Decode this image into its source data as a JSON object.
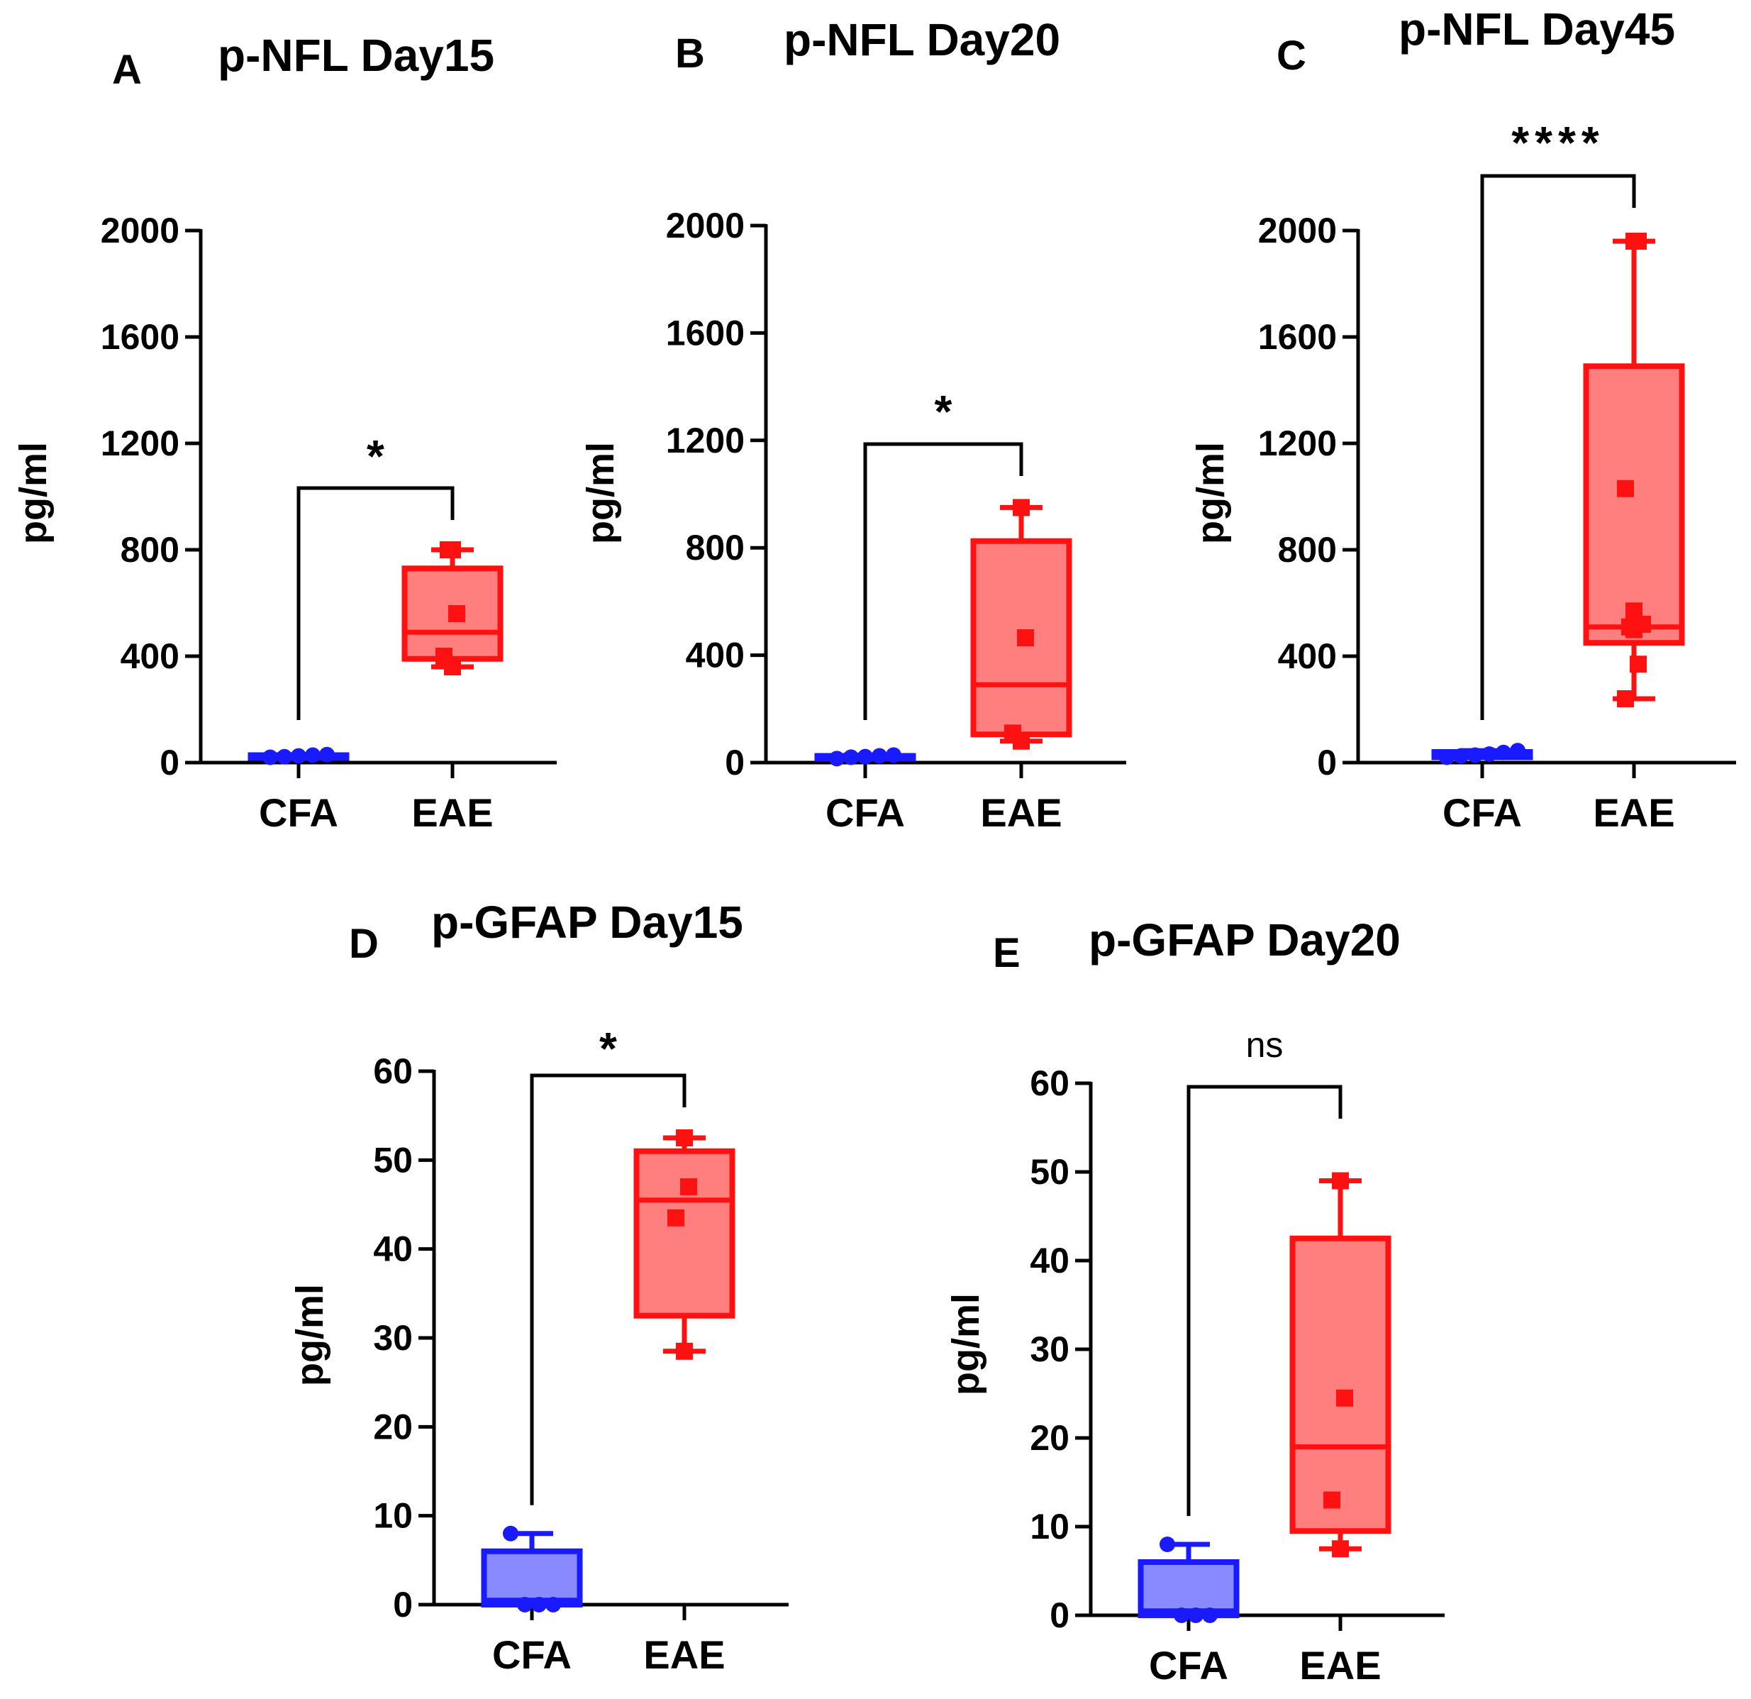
{
  "figure": {
    "colors": {
      "CFA": "#1a1aff",
      "CFA_fill": "#8a8aff",
      "EAE": "#ff1111",
      "EAE_fill": "#ff7f7f",
      "axis": "#000000"
    }
  },
  "chart_data": [
    {
      "panel": "A",
      "type": "box",
      "title": "p-NFL Day15",
      "ylabel": "pg/ml",
      "xlabel": "",
      "categories": [
        "CFA",
        "EAE"
      ],
      "ylim": [
        0,
        2000
      ],
      "yticks": [
        0,
        400,
        800,
        1200,
        1600,
        2000
      ],
      "yticklabels": [
        "0",
        "400",
        "800",
        "1200",
        "1600",
        "2000"
      ],
      "significance": "*",
      "series": [
        {
          "name": "CFA",
          "min": 20,
          "q1": 20,
          "median": 22,
          "q3": 28,
          "max": 30,
          "points": [
            20,
            22,
            25,
            28,
            30
          ]
        },
        {
          "name": "EAE",
          "min": 360,
          "q1": 390,
          "median": 490,
          "q3": 730,
          "max": 800,
          "points": [
            800,
            560,
            400,
            360,
            800
          ]
        }
      ]
    },
    {
      "panel": "B",
      "type": "box",
      "title": "p-NFL Day20",
      "ylabel": "pg/ml",
      "xlabel": "",
      "categories": [
        "CFA",
        "EAE"
      ],
      "ylim": [
        0,
        2000
      ],
      "yticks": [
        0,
        400,
        800,
        1200,
        1600,
        2000
      ],
      "yticklabels": [
        "0",
        "400",
        "800",
        "1200",
        "1600",
        "2000"
      ],
      "significance": "*",
      "series": [
        {
          "name": "CFA",
          "min": 15,
          "q1": 15,
          "median": 20,
          "q3": 25,
          "max": 28,
          "points": [
            15,
            20,
            22,
            25,
            28
          ]
        },
        {
          "name": "EAE",
          "min": 80,
          "q1": 105,
          "median": 290,
          "q3": 825,
          "max": 950,
          "points": [
            950,
            465,
            110,
            80
          ]
        }
      ]
    },
    {
      "panel": "C",
      "type": "box",
      "title": "p-NFL Day45",
      "ylabel": "pg/ml",
      "xlabel": "",
      "categories": [
        "CFA",
        "EAE"
      ],
      "ylim": [
        0,
        2000
      ],
      "yticks": [
        0,
        400,
        800,
        1200,
        1600,
        2000
      ],
      "yticklabels": [
        "0",
        "400",
        "800",
        "1200",
        "1600",
        "2000"
      ],
      "significance": "****",
      "series": [
        {
          "name": "CFA",
          "min": 20,
          "q1": 20,
          "median": 28,
          "q3": 40,
          "max": 45,
          "points": [
            20,
            25,
            28,
            32,
            38,
            45
          ]
        },
        {
          "name": "EAE",
          "min": 240,
          "q1": 450,
          "median": 510,
          "q3": 1490,
          "max": 1960,
          "points": [
            1960,
            1960,
            1030,
            570,
            510,
            520,
            500,
            370,
            240
          ]
        }
      ]
    },
    {
      "panel": "D",
      "type": "box",
      "title": "p-GFAP Day15",
      "ylabel": "pg/ml",
      "xlabel": "",
      "categories": [
        "CFA",
        "EAE"
      ],
      "ylim": [
        0,
        60
      ],
      "yticks": [
        0,
        10,
        20,
        30,
        40,
        50,
        60
      ],
      "yticklabels": [
        "0",
        "10",
        "20",
        "30",
        "40",
        "50",
        "60"
      ],
      "significance": "*",
      "series": [
        {
          "name": "CFA",
          "min": 0,
          "q1": 0,
          "median": 0.5,
          "q3": 6,
          "max": 8,
          "points": [
            8,
            0,
            0,
            0
          ]
        },
        {
          "name": "EAE",
          "min": 28.5,
          "q1": 32.5,
          "median": 45.5,
          "q3": 51,
          "max": 52.5,
          "points": [
            52.5,
            47,
            43.5,
            28.5
          ]
        }
      ]
    },
    {
      "panel": "E",
      "type": "box",
      "title": "p-GFAP Day20",
      "ylabel": "pg/ml",
      "xlabel": "",
      "categories": [
        "CFA",
        "EAE"
      ],
      "ylim": [
        0,
        60
      ],
      "yticks": [
        0,
        10,
        20,
        30,
        40,
        50,
        60
      ],
      "yticklabels": [
        "0",
        "10",
        "20",
        "30",
        "40",
        "50",
        "60"
      ],
      "significance": "ns",
      "series": [
        {
          "name": "CFA",
          "min": 0,
          "q1": 0,
          "median": 0.5,
          "q3": 6,
          "max": 8,
          "points": [
            8,
            0,
            0,
            0
          ]
        },
        {
          "name": "EAE",
          "min": 7.5,
          "q1": 9.5,
          "median": 19,
          "q3": 42.5,
          "max": 49,
          "points": [
            49,
            24.5,
            13,
            7.5
          ]
        }
      ]
    }
  ]
}
